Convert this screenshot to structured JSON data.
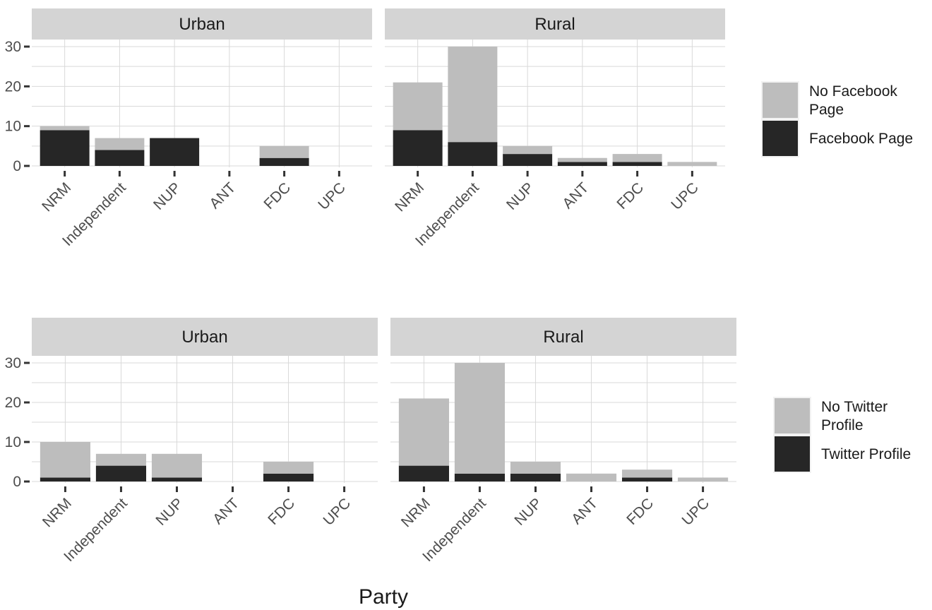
{
  "chart_data": [
    {
      "type": "bar",
      "stacked": true,
      "categories": [
        "NRM",
        "Independent",
        "NUP",
        "ANT",
        "FDC",
        "UPC"
      ],
      "ylim": [
        0,
        30
      ],
      "yticks": [
        0,
        10,
        20,
        30
      ],
      "grid": true,
      "legend_position": "right",
      "legend": [
        "No Facebook Page",
        "Facebook Page"
      ],
      "colors": {
        "No Facebook Page": "#bdbdbd",
        "Facebook Page": "#262626"
      },
      "facets": [
        {
          "title": "Urban",
          "series": [
            {
              "name": "Facebook Page",
              "values": [
                9,
                4,
                7,
                0,
                2,
                0
              ]
            },
            {
              "name": "No Facebook Page",
              "values": [
                1,
                3,
                0,
                0,
                3,
                0
              ]
            }
          ]
        },
        {
          "title": "Rural",
          "series": [
            {
              "name": "Facebook Page",
              "values": [
                9,
                6,
                3,
                1,
                1,
                0
              ]
            },
            {
              "name": "No Facebook Page",
              "values": [
                12,
                24,
                2,
                1,
                2,
                1
              ]
            }
          ]
        }
      ]
    },
    {
      "type": "bar",
      "stacked": true,
      "categories": [
        "NRM",
        "Independent",
        "NUP",
        "ANT",
        "FDC",
        "UPC"
      ],
      "ylim": [
        0,
        30
      ],
      "yticks": [
        0,
        10,
        20,
        30
      ],
      "grid": true,
      "legend_position": "right",
      "legend": [
        "No Twitter Profile",
        "Twitter Profile"
      ],
      "colors": {
        "No Twitter Profile": "#bdbdbd",
        "Twitter Profile": "#262626"
      },
      "facets": [
        {
          "title": "Urban",
          "series": [
            {
              "name": "Twitter Profile",
              "values": [
                1,
                4,
                1,
                0,
                2,
                0
              ]
            },
            {
              "name": "No Twitter Profile",
              "values": [
                9,
                3,
                6,
                0,
                3,
                0
              ]
            }
          ]
        },
        {
          "title": "Rural",
          "series": [
            {
              "name": "Twitter Profile",
              "values": [
                4,
                2,
                2,
                0,
                1,
                0
              ]
            },
            {
              "name": "No Twitter Profile",
              "values": [
                17,
                28,
                3,
                2,
                2,
                1
              ]
            }
          ]
        }
      ]
    }
  ],
  "legends": [
    {
      "items": [
        {
          "label_lines": [
            "No Facebook",
            "Page"
          ],
          "color": "#bdbdbd"
        },
        {
          "label_lines": [
            "Facebook Page"
          ],
          "color": "#262626"
        }
      ]
    },
    {
      "items": [
        {
          "label_lines": [
            "No Twitter",
            "Profile"
          ],
          "color": "#bdbdbd"
        },
        {
          "label_lines": [
            "Twitter Profile"
          ],
          "color": "#262626"
        }
      ]
    }
  ],
  "xlabel": "Party"
}
